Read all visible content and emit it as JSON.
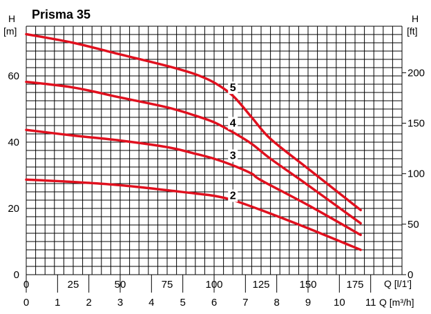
{
  "chart_data": {
    "type": "line",
    "title": "Prisma 35",
    "y_left_label": {
      "symbol": "H",
      "unit": "[m]"
    },
    "y_right_label": {
      "symbol": "H",
      "unit": "[ft]"
    },
    "x_label_primary": "Q [l/1']",
    "x_label_secondary": "Q [m³/h]",
    "xlim": [
      0,
      200
    ],
    "ylim": [
      0,
      75
    ],
    "x_ticks": [
      0,
      25,
      50,
      75,
      100,
      125,
      150,
      175
    ],
    "x_tick_labels": [
      "0",
      "25",
      "50",
      "75",
      "100",
      "125",
      "150",
      "175"
    ],
    "y_ticks": [
      0,
      20,
      40,
      60
    ],
    "y_tick_labels": [
      "0",
      "20",
      "40",
      "60"
    ],
    "x2_ticks": [
      0,
      1,
      2,
      3,
      4,
      5,
      6,
      7,
      8,
      9,
      10,
      11
    ],
    "x2_tick_labels": [
      "0",
      "1",
      "2",
      "3",
      "4",
      "5",
      "6",
      "7",
      "8",
      "9",
      "10",
      "11"
    ],
    "y2_ticks": [
      0,
      50,
      100,
      150,
      200
    ],
    "y2_tick_labels": [
      "0",
      "50",
      "100",
      "150",
      "200"
    ],
    "grid": true,
    "series": [
      {
        "name": "2",
        "x": [
          0,
          25,
          50,
          75,
          90,
          100,
          110,
          125,
          150,
          178
        ],
        "y": [
          28.7,
          28,
          27,
          25.5,
          24.5,
          23.8,
          22.5,
          19.5,
          14,
          7.5
        ]
      },
      {
        "name": "3",
        "x": [
          0,
          25,
          50,
          75,
          90,
          100,
          110,
          120,
          125,
          150,
          178
        ],
        "y": [
          43.7,
          42,
          40.5,
          38.5,
          36.5,
          35,
          33,
          30.5,
          28.5,
          21,
          12
        ]
      },
      {
        "name": "4",
        "x": [
          0,
          25,
          50,
          75,
          90,
          100,
          110,
          120,
          130,
          150,
          178
        ],
        "y": [
          58.2,
          56.5,
          53.5,
          50.5,
          48,
          46,
          43,
          39.5,
          35,
          27,
          15.5
        ]
      },
      {
        "name": "5",
        "x": [
          0,
          25,
          50,
          75,
          90,
          100,
          110,
          120,
          130,
          150,
          178
        ],
        "y": [
          72.6,
          70,
          66.5,
          63,
          60.5,
          58,
          54,
          47.5,
          41,
          32,
          19.5
        ]
      }
    ],
    "curve_labels": [
      {
        "text": "5",
        "x": 110,
        "y": 55.6
      },
      {
        "text": "4",
        "x": 110,
        "y": 44.9
      },
      {
        "text": "3",
        "x": 110,
        "y": 35.1
      },
      {
        "text": "2",
        "x": 110,
        "y": 23
      }
    ],
    "line_color": "#e0101e",
    "grid_color": "#000000"
  }
}
